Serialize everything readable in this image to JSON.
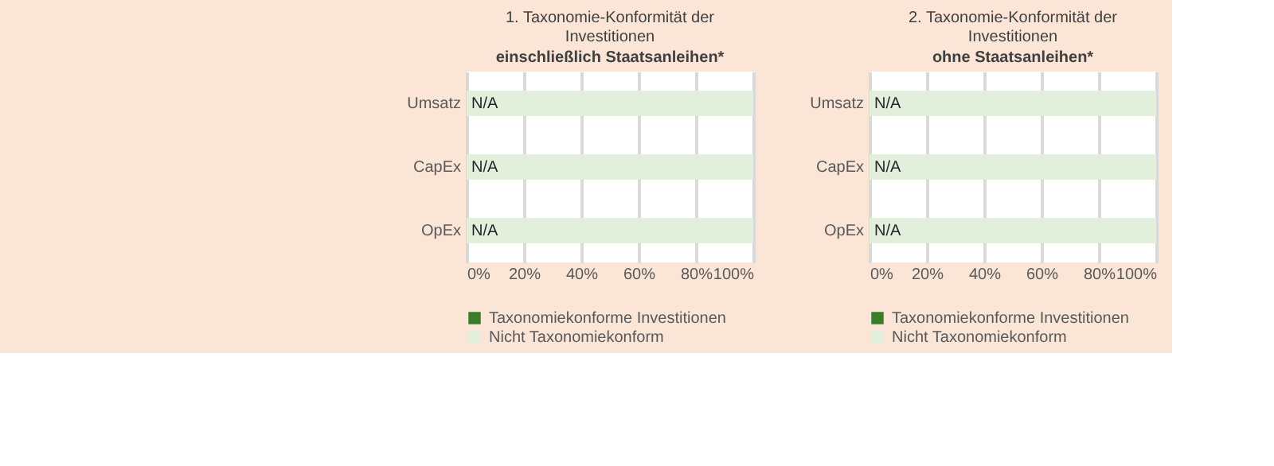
{
  "chart_data": [
    {
      "type": "bar",
      "orientation": "horizontal",
      "stacked": true,
      "title": "1. Taxonomie-Konformität der Investitionen",
      "subtitle": "einschließlich Staatsanleihen*",
      "categories": [
        "Umsatz",
        "CapEx",
        "OpEx"
      ],
      "series": [
        {
          "name": "Taxonomiekonforme Investitionen",
          "color": "#3b7d2a",
          "values": [
            0,
            0,
            0
          ]
        },
        {
          "name": "Nicht Taxonomiekonform",
          "color": "#e2efda",
          "values": [
            1,
            1,
            1
          ]
        }
      ],
      "annotations": [
        "N/A",
        "N/A",
        "N/A"
      ],
      "xlim": [
        0,
        1
      ],
      "xticks": [
        {
          "value": 0,
          "label": "0%"
        },
        {
          "value": 0.2,
          "label": "20%"
        },
        {
          "value": 0.4,
          "label": "40%"
        },
        {
          "value": 0.6,
          "label": "60%"
        },
        {
          "value": 0.8,
          "label": "80%"
        },
        {
          "value": 1,
          "label": "100%"
        }
      ],
      "grid": "x",
      "legend": "bottom"
    },
    {
      "type": "bar",
      "orientation": "horizontal",
      "stacked": true,
      "title": "2. Taxonomie-Konformität der Investitionen",
      "subtitle": "ohne Staatsanleihen*",
      "categories": [
        "Umsatz",
        "CapEx",
        "OpEx"
      ],
      "series": [
        {
          "name": "Taxonomiekonforme Investitionen",
          "color": "#3b7d2a",
          "values": [
            0,
            0,
            0
          ]
        },
        {
          "name": "Nicht Taxonomiekonform",
          "color": "#e2efda",
          "values": [
            1,
            1,
            1
          ]
        }
      ],
      "annotations": [
        "N/A",
        "N/A",
        "N/A"
      ],
      "xlim": [
        0,
        1
      ],
      "xticks": [
        {
          "value": 0,
          "label": "0%"
        },
        {
          "value": 0.2,
          "label": "20%"
        },
        {
          "value": 0.4,
          "label": "40%"
        },
        {
          "value": 0.6,
          "label": "60%"
        },
        {
          "value": 0.8,
          "label": "80%"
        },
        {
          "value": 1,
          "label": "100%"
        }
      ],
      "grid": "x",
      "legend": "bottom"
    }
  ]
}
